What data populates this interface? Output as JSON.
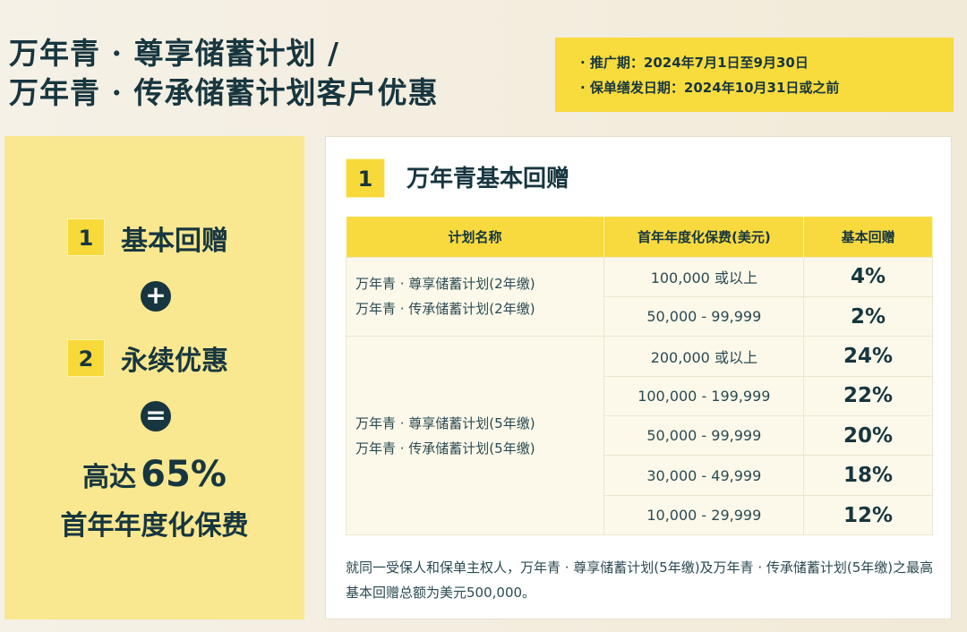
{
  "title": {
    "line1": "万年青 · 尊享储蓄计划 /",
    "line2": "万年青 · 传承储蓄计划客户优惠"
  },
  "promo": {
    "period": "· 推广期：2024年7月1日至9月30日",
    "issue_date": "· 保单缮发日期：2024年10月31日或之前"
  },
  "left": {
    "item1_num": "1",
    "item1": "基本回赠",
    "plus": "+",
    "item2_num": "2",
    "item2": "永续优惠",
    "equals": "=",
    "result_prefix": "高达",
    "result_value": "65%",
    "result_line2": "首年年度化保费"
  },
  "section": {
    "num": "1",
    "title": "万年青基本回赠"
  },
  "table": {
    "headers": [
      "计划名称",
      "首年年度化保费(美元)",
      "基本回赠"
    ],
    "groups": [
      {
        "plans": [
          "万年青 · 尊享储蓄计划(2年缴)",
          "万年青 · 传承储蓄计划(2年缴)"
        ],
        "rows": [
          [
            "100,000 或以上",
            "4%"
          ],
          [
            "50,000 - 99,999",
            "2%"
          ]
        ]
      },
      {
        "plans": [
          "万年青 · 尊享储蓄计划(5年缴)",
          "万年青 · 传承储蓄计划(5年缴)"
        ],
        "rows": [
          [
            "200,000 或以上",
            "24%"
          ],
          [
            "100,000 - 199,999",
            "22%"
          ],
          [
            "50,000 - 99,999",
            "20%"
          ],
          [
            "30,000 - 49,999",
            "18%"
          ],
          [
            "10,000 - 29,999",
            "12%"
          ]
        ]
      }
    ]
  },
  "note": "就同一受保人和保单主权人，万年青 · 尊享储蓄计划(5年缴)及万年青 · 传承储蓄计划(5年缴)之最高基本回赠总额为美元500,000。",
  "colors": {
    "yellow": "#f8da3f",
    "dark": "#17363f",
    "panel": "#f9e890"
  }
}
